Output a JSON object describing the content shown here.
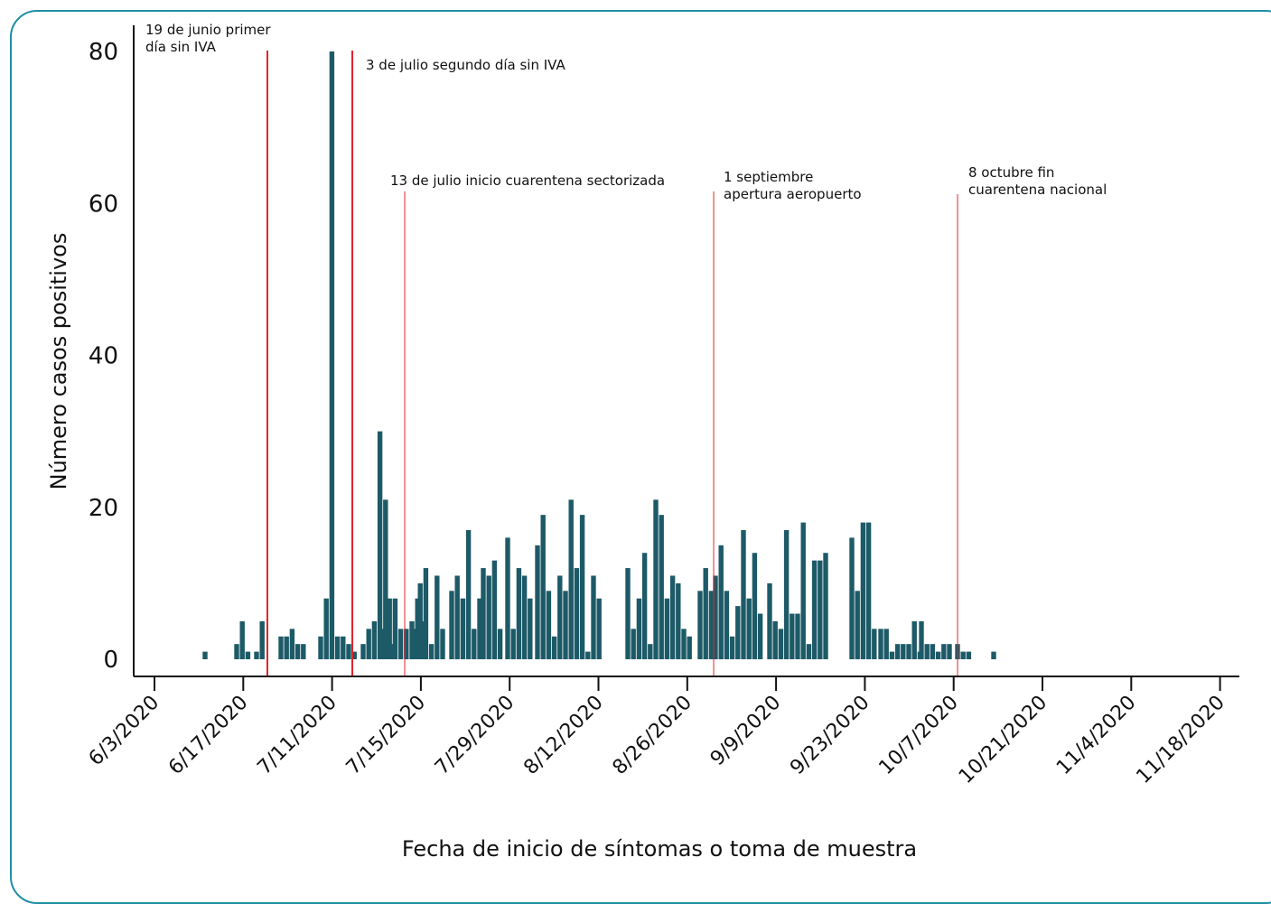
{
  "chart_data": {
    "type": "bar",
    "title": "",
    "xlabel": "Fecha de inicio de síntomas o toma de muestra",
    "ylabel": "Número casos positivos",
    "ylim": [
      0,
      80
    ],
    "yticks": [
      "0",
      "20",
      "40",
      "60",
      "80"
    ],
    "xticks": [
      "6/3/2020",
      "6/17/2020",
      "7/11/2020",
      "7/15/2020",
      "7/29/2020",
      "8/12/2020",
      "8/26/2020",
      "9/9/2020",
      "9/23/2020",
      "10/7/2020",
      "10/21/2020",
      "11/4/2020",
      "11/18/2020"
    ],
    "bar_color": "#1d5a67",
    "event_color": "#e5232b",
    "values": [
      0,
      0,
      0,
      0,
      0,
      0,
      0,
      0,
      1,
      0,
      0,
      0,
      0,
      0,
      2,
      5,
      0,
      0,
      1,
      0,
      1,
      0,
      0,
      0,
      0,
      5,
      3,
      3,
      4,
      2,
      0,
      0,
      2,
      3,
      8,
      80,
      3,
      3,
      0,
      0,
      0,
      0,
      0,
      0,
      0,
      0,
      0,
      0,
      0,
      0,
      0,
      0,
      0,
      0,
      0,
      0,
      0,
      0,
      0,
      0
    ],
    "bars": [
      {
        "x": 1,
        "y": 1
      },
      {
        "x": 2,
        "y": 0
      }
    ],
    "series": [
      {
        "values": [
          1,
          2,
          5,
          1,
          1,
          5,
          3,
          3,
          4,
          2,
          2,
          3,
          8,
          80,
          3,
          3,
          2,
          1,
          2,
          4,
          5,
          30,
          21,
          2,
          4,
          8,
          8,
          4,
          4,
          5,
          8,
          5,
          4,
          10,
          12,
          2,
          11,
          4,
          9,
          11,
          8,
          17,
          4,
          8,
          12,
          11,
          13,
          4,
          16,
          4,
          12,
          11,
          8,
          15,
          19,
          9,
          3,
          11,
          9,
          21,
          12,
          19,
          1,
          11,
          8,
          12,
          4,
          8,
          14,
          2,
          21,
          19,
          8,
          11,
          10,
          4,
          3,
          9,
          12,
          9,
          11,
          15,
          9,
          3,
          7,
          17,
          8,
          14,
          6,
          10,
          5,
          4,
          17,
          6,
          6,
          18,
          2,
          13,
          13,
          14,
          16,
          9,
          18,
          18,
          4,
          4,
          4,
          1,
          2,
          2,
          2,
          5,
          1,
          5,
          2,
          2,
          1,
          2,
          2,
          2,
          1,
          1,
          1
        ]
      }
    ],
    "events": [
      {
        "label_lines": [
          "19 de junio primer",
          "día sin IVA"
        ]
      },
      {
        "label_lines": [
          "3 de julio segundo día sin IVA"
        ]
      },
      {
        "label_lines": [
          "13 de julio inicio cuarentena sectorizada"
        ]
      },
      {
        "label_lines": [
          "1 septiembre",
          "apertura aeropuerto"
        ]
      },
      {
        "label_lines": [
          "8 octubre fin",
          "cuarentena nacional"
        ]
      }
    ]
  }
}
